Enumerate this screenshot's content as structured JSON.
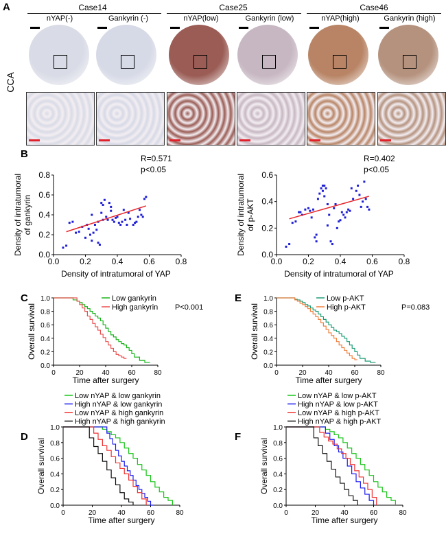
{
  "panel_labels": {
    "A": "A",
    "B": "B",
    "C": "C",
    "D": "D",
    "E": "E",
    "F": "F"
  },
  "panel_a": {
    "row_label": "CCA",
    "cases": [
      {
        "title": "Case14",
        "columns": [
          "nYAP(-)",
          "Gankyrin (-)"
        ]
      },
      {
        "title": "Case25",
        "columns": [
          "nYAP(low)",
          "Gankyrin (low)"
        ]
      },
      {
        "title": "Case46",
        "columns": [
          "nYAP(high)",
          "Gankyrin (high)"
        ]
      }
    ],
    "stain_colors": [
      "#d9dbe6",
      "#d6d9e6",
      "#9a5c55",
      "#c7b7c2",
      "#b88465",
      "#b5927e"
    ]
  },
  "chart_data": [
    {
      "type": "scatter",
      "panel": "B-left",
      "annotation_r": "R=0.571",
      "annotation_p": "p<0.05",
      "xlabel": "Density of intratumoral of YAP",
      "ylabel_line1": "Density of intratumoral",
      "ylabel_line2": "of gankyrin",
      "xlim": [
        0,
        0.8
      ],
      "ylim": [
        0,
        0.8
      ],
      "xticks": [
        "0.0",
        "0.2",
        "0.4",
        "0.6",
        "0.8"
      ],
      "yticks": [
        "0.0",
        "0.2",
        "0.4",
        "0.6",
        "0.8"
      ],
      "point_color": "#1f1fd6",
      "fit_color": "#e8262a",
      "fit_line": {
        "x": [
          0.08,
          0.58
        ],
        "y": [
          0.23,
          0.49
        ]
      },
      "points": [
        [
          0.06,
          0.07
        ],
        [
          0.08,
          0.09
        ],
        [
          0.1,
          0.32
        ],
        [
          0.12,
          0.33
        ],
        [
          0.14,
          0.22
        ],
        [
          0.16,
          0.23
        ],
        [
          0.18,
          0.28
        ],
        [
          0.2,
          0.17
        ],
        [
          0.21,
          0.3
        ],
        [
          0.22,
          0.26
        ],
        [
          0.23,
          0.2
        ],
        [
          0.24,
          0.14
        ],
        [
          0.24,
          0.4
        ],
        [
          0.25,
          0.22
        ],
        [
          0.26,
          0.3
        ],
        [
          0.27,
          0.25
        ],
        [
          0.28,
          0.33
        ],
        [
          0.28,
          0.12
        ],
        [
          0.29,
          0.1
        ],
        [
          0.3,
          0.42
        ],
        [
          0.31,
          0.5
        ],
        [
          0.31,
          0.35
        ],
        [
          0.32,
          0.55
        ],
        [
          0.33,
          0.38
        ],
        [
          0.34,
          0.35
        ],
        [
          0.35,
          0.52
        ],
        [
          0.36,
          0.48
        ],
        [
          0.37,
          0.35
        ],
        [
          0.38,
          0.33
        ],
        [
          0.39,
          0.37
        ],
        [
          0.4,
          0.38
        ],
        [
          0.41,
          0.32
        ],
        [
          0.42,
          0.3
        ],
        [
          0.43,
          0.33
        ],
        [
          0.44,
          0.45
        ],
        [
          0.45,
          0.35
        ],
        [
          0.46,
          0.3
        ],
        [
          0.47,
          0.42
        ],
        [
          0.48,
          0.36
        ],
        [
          0.5,
          0.3
        ],
        [
          0.51,
          0.32
        ],
        [
          0.52,
          0.33
        ],
        [
          0.53,
          0.38
        ],
        [
          0.54,
          0.45
        ],
        [
          0.55,
          0.4
        ],
        [
          0.56,
          0.38
        ],
        [
          0.57,
          0.56
        ],
        [
          0.58,
          0.58
        ],
        [
          0.3,
          0.52
        ],
        [
          0.36,
          0.44
        ]
      ]
    },
    {
      "type": "scatter",
      "panel": "B-right",
      "annotation_r": "R=0.402",
      "annotation_p": "p<0.05",
      "xlabel": "Density of intratumoral of YAP",
      "ylabel_line1": "Density of intratumoral",
      "ylabel_line2": "of p-AKT",
      "xlim": [
        0,
        0.8
      ],
      "ylim": [
        0,
        0.6
      ],
      "xticks": [
        "0.0",
        "0.2",
        "0.4",
        "0.6",
        "0.8"
      ],
      "yticks": [
        "0.0",
        "0.2",
        "0.4",
        "0.6"
      ],
      "point_color": "#1f1fd6",
      "fit_color": "#e8262a",
      "fit_line": {
        "x": [
          0.08,
          0.58
        ],
        "y": [
          0.27,
          0.44
        ]
      },
      "points": [
        [
          0.06,
          0.06
        ],
        [
          0.08,
          0.08
        ],
        [
          0.1,
          0.24
        ],
        [
          0.12,
          0.25
        ],
        [
          0.14,
          0.32
        ],
        [
          0.15,
          0.32
        ],
        [
          0.16,
          0.3
        ],
        [
          0.18,
          0.34
        ],
        [
          0.2,
          0.35
        ],
        [
          0.21,
          0.33
        ],
        [
          0.22,
          0.28
        ],
        [
          0.23,
          0.34
        ],
        [
          0.24,
          0.13
        ],
        [
          0.25,
          0.1
        ],
        [
          0.25,
          0.15
        ],
        [
          0.26,
          0.42
        ],
        [
          0.27,
          0.46
        ],
        [
          0.28,
          0.5
        ],
        [
          0.29,
          0.52
        ],
        [
          0.3,
          0.52
        ],
        [
          0.31,
          0.5
        ],
        [
          0.32,
          0.38
        ],
        [
          0.32,
          0.22
        ],
        [
          0.33,
          0.3
        ],
        [
          0.34,
          0.1
        ],
        [
          0.35,
          0.08
        ],
        [
          0.36,
          0.35
        ],
        [
          0.37,
          0.38
        ],
        [
          0.38,
          0.2
        ],
        [
          0.39,
          0.25
        ],
        [
          0.4,
          0.26
        ],
        [
          0.41,
          0.32
        ],
        [
          0.42,
          0.3
        ],
        [
          0.43,
          0.28
        ],
        [
          0.44,
          0.32
        ],
        [
          0.45,
          0.34
        ],
        [
          0.46,
          0.33
        ],
        [
          0.47,
          0.5
        ],
        [
          0.48,
          0.42
        ],
        [
          0.5,
          0.48
        ],
        [
          0.51,
          0.52
        ],
        [
          0.52,
          0.45
        ],
        [
          0.53,
          0.36
        ],
        [
          0.54,
          0.4
        ],
        [
          0.55,
          0.55
        ],
        [
          0.56,
          0.42
        ],
        [
          0.57,
          0.36
        ],
        [
          0.58,
          0.34
        ],
        [
          0.29,
          0.48
        ],
        [
          0.3,
          0.44
        ]
      ]
    },
    {
      "type": "line",
      "panel": "C",
      "xlabel": "Time after surgery",
      "ylabel": "Overall survival",
      "xlim": [
        0,
        80
      ],
      "ylim": [
        0,
        1
      ],
      "xticks": [
        "0",
        "20",
        "40",
        "60",
        "80"
      ],
      "yticks": [
        "0.0",
        "0.2",
        "0.4",
        "0.6",
        "0.8",
        "1.0"
      ],
      "annotation": "P<0.001",
      "series": [
        {
          "name": "Low  gankyrin",
          "color": "#18b418",
          "x": [
            0,
            12,
            15,
            18,
            20,
            22,
            24,
            26,
            28,
            30,
            32,
            34,
            36,
            38,
            40,
            42,
            44,
            46,
            48,
            50,
            52,
            54,
            56,
            58,
            60,
            62,
            66,
            70,
            74
          ],
          "y": [
            1,
            1,
            0.97,
            0.95,
            0.93,
            0.9,
            0.87,
            0.84,
            0.8,
            0.77,
            0.73,
            0.7,
            0.66,
            0.6,
            0.55,
            0.5,
            0.45,
            0.42,
            0.38,
            0.35,
            0.32,
            0.3,
            0.26,
            0.22,
            0.17,
            0.12,
            0.07,
            0.04,
            0.04
          ]
        },
        {
          "name": "High gankyrin",
          "color": "#ec4f4f",
          "x": [
            0,
            15,
            18,
            20,
            22,
            24,
            26,
            28,
            30,
            32,
            34,
            36,
            38,
            40,
            42,
            44,
            46,
            48,
            50,
            52,
            54,
            56
          ],
          "y": [
            1,
            1,
            0.95,
            0.9,
            0.85,
            0.8,
            0.73,
            0.68,
            0.62,
            0.57,
            0.52,
            0.46,
            0.41,
            0.35,
            0.3,
            0.25,
            0.2,
            0.16,
            0.14,
            0.12,
            0.1,
            0.1
          ]
        }
      ]
    },
    {
      "type": "line",
      "panel": "E",
      "xlabel": "Time after surgery",
      "ylabel": "Overall survival",
      "xlim": [
        0,
        80
      ],
      "ylim": [
        0,
        1
      ],
      "xticks": [
        "0",
        "20",
        "40",
        "60",
        "80"
      ],
      "yticks": [
        "0.0",
        "0.2",
        "0.4",
        "0.6",
        "0.8",
        "1.0"
      ],
      "annotation": "P=0.083",
      "series": [
        {
          "name": "Low  p-AKT",
          "color": "#1e9c76",
          "x": [
            0,
            12,
            14,
            16,
            18,
            20,
            22,
            24,
            26,
            28,
            30,
            32,
            34,
            36,
            38,
            40,
            42,
            44,
            46,
            48,
            50,
            52,
            54,
            56,
            58,
            60,
            62,
            64,
            68,
            72,
            76
          ],
          "y": [
            1,
            1,
            0.98,
            0.97,
            0.95,
            0.93,
            0.9,
            0.88,
            0.85,
            0.82,
            0.8,
            0.76,
            0.72,
            0.68,
            0.64,
            0.6,
            0.56,
            0.52,
            0.5,
            0.47,
            0.43,
            0.4,
            0.35,
            0.3,
            0.25,
            0.2,
            0.15,
            0.1,
            0.06,
            0.04,
            0.04
          ]
        },
        {
          "name": "High p-AKT",
          "color": "#f0803e",
          "x": [
            0,
            12,
            14,
            16,
            18,
            20,
            22,
            24,
            26,
            28,
            30,
            32,
            34,
            36,
            38,
            40,
            42,
            44,
            46,
            48,
            50,
            52,
            54,
            56,
            58,
            60,
            62
          ],
          "y": [
            1,
            1,
            0.97,
            0.95,
            0.92,
            0.9,
            0.87,
            0.84,
            0.8,
            0.76,
            0.72,
            0.68,
            0.63,
            0.58,
            0.53,
            0.48,
            0.44,
            0.4,
            0.35,
            0.3,
            0.26,
            0.22,
            0.18,
            0.14,
            0.1,
            0.08,
            0.08
          ]
        }
      ]
    },
    {
      "type": "line",
      "panel": "D",
      "xlabel": "Time after surgery",
      "ylabel": "Overall survival",
      "xlim": [
        0,
        80
      ],
      "ylim": [
        0,
        1
      ],
      "xticks": [
        "0",
        "20",
        "40",
        "60",
        "80"
      ],
      "yticks": [
        "0.0",
        "0.2",
        "0.4",
        "0.6",
        "0.8",
        "1.0"
      ],
      "series": [
        {
          "name": "Low  nYAP & low gankyrin",
          "color": "#18c418",
          "x": [
            0,
            24,
            27,
            30,
            33,
            36,
            39,
            42,
            45,
            48,
            51,
            54,
            57,
            60,
            63,
            66,
            69,
            72,
            75
          ],
          "y": [
            1,
            1,
            0.97,
            0.94,
            0.9,
            0.86,
            0.8,
            0.73,
            0.66,
            0.6,
            0.52,
            0.45,
            0.38,
            0.3,
            0.23,
            0.17,
            0.1,
            0.06,
            0
          ]
        },
        {
          "name": "High nYAP & low gankyrin",
          "color": "#1c1cf0",
          "x": [
            0,
            28,
            30,
            32,
            34,
            36,
            38,
            40,
            42,
            44,
            46,
            48,
            50,
            52,
            54,
            56,
            58,
            60,
            62
          ],
          "y": [
            1,
            1,
            0.92,
            0.85,
            0.78,
            0.7,
            0.63,
            0.56,
            0.5,
            0.44,
            0.38,
            0.32,
            0.25,
            0.2,
            0.15,
            0.1,
            0.05,
            0,
            0
          ]
        },
        {
          "name": "Low  nYAP & high gankyrin",
          "color": "#f03232",
          "x": [
            0,
            18,
            21,
            24,
            27,
            30,
            33,
            36,
            39,
            42,
            45,
            48,
            51,
            54,
            57
          ],
          "y": [
            1,
            1,
            0.92,
            0.84,
            0.76,
            0.7,
            0.62,
            0.54,
            0.47,
            0.4,
            0.32,
            0.24,
            0.16,
            0.08,
            0
          ]
        },
        {
          "name": "High nYAP & high gankyrin",
          "color": "#101010",
          "x": [
            0,
            15,
            18,
            21,
            24,
            27,
            30,
            33,
            36,
            39,
            42,
            45,
            48
          ],
          "y": [
            1,
            1,
            0.86,
            0.75,
            0.66,
            0.56,
            0.45,
            0.35,
            0.26,
            0.16,
            0.08,
            0.04,
            0
          ]
        }
      ]
    },
    {
      "type": "line",
      "panel": "F",
      "xlabel": "Time after surgery",
      "ylabel": "Overall survival",
      "xlim": [
        0,
        80
      ],
      "ylim": [
        0,
        1
      ],
      "xticks": [
        "0",
        "20",
        "40",
        "60",
        "80"
      ],
      "yticks": [
        "0.0",
        "0.2",
        "0.4",
        "0.6",
        "0.8",
        "1.0"
      ],
      "series": [
        {
          "name": "Low  nYAP & low p-AKT",
          "color": "#18c418",
          "x": [
            0,
            24,
            27,
            30,
            33,
            36,
            39,
            42,
            45,
            48,
            51,
            54,
            57,
            60,
            63,
            66,
            69,
            72,
            75
          ],
          "y": [
            1,
            1,
            0.97,
            0.94,
            0.9,
            0.86,
            0.8,
            0.73,
            0.66,
            0.6,
            0.52,
            0.45,
            0.38,
            0.3,
            0.23,
            0.17,
            0.1,
            0.06,
            0
          ]
        },
        {
          "name": "High nYAP & low p-AKT",
          "color": "#1c1cf0",
          "x": [
            0,
            24,
            27,
            30,
            33,
            36,
            39,
            42,
            45,
            48,
            51,
            54,
            57,
            60
          ],
          "y": [
            1,
            1,
            0.92,
            0.84,
            0.76,
            0.68,
            0.6,
            0.5,
            0.4,
            0.3,
            0.22,
            0.14,
            0.06,
            0
          ]
        },
        {
          "name": "Low  nYAP & high p-AKT",
          "color": "#f03232",
          "x": [
            0,
            20,
            23,
            26,
            29,
            32,
            35,
            38,
            41,
            44,
            47,
            50,
            53,
            56,
            59,
            62
          ],
          "y": [
            1,
            1,
            0.93,
            0.87,
            0.82,
            0.78,
            0.72,
            0.66,
            0.6,
            0.52,
            0.44,
            0.36,
            0.28,
            0.2,
            0.1,
            0
          ]
        },
        {
          "name": "High nYAP & high p-AKT",
          "color": "#101010",
          "x": [
            0,
            16,
            19,
            22,
            25,
            28,
            31,
            34,
            37,
            40,
            43,
            46,
            49
          ],
          "y": [
            1,
            1,
            0.86,
            0.76,
            0.66,
            0.56,
            0.46,
            0.36,
            0.28,
            0.2,
            0.12,
            0.06,
            0
          ]
        }
      ]
    }
  ]
}
